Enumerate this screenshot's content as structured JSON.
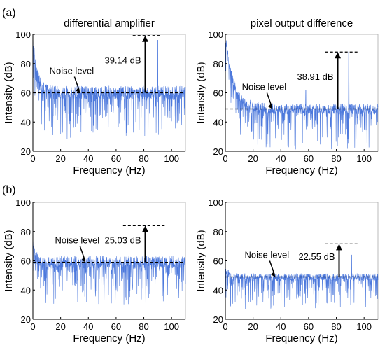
{
  "row_labels": [
    "(a)",
    "(b)"
  ],
  "colors": {
    "signal": "#2e62d6",
    "axis": "#000000",
    "noise_line": "#000000",
    "background": "#ffffff"
  },
  "chart_data": [
    {
      "type": "line",
      "title": "differential amplifier",
      "xlabel": "Frequency (Hz)",
      "ylabel": "Intensity (dB)",
      "xlim": [
        0,
        110
      ],
      "ylim": [
        20,
        100
      ],
      "xticks": [
        0,
        20,
        40,
        60,
        80,
        100
      ],
      "yticks": [
        20,
        40,
        60,
        80,
        100
      ],
      "noise_level_db": 60,
      "peak_freq_hz": 81,
      "peak_db": 99.14,
      "peak_line_extent_hz": [
        72,
        92
      ],
      "annotations": {
        "noise_label": "Noise level",
        "delta_label": "39.14 dB"
      },
      "noise_label_anchor": {
        "x": 34,
        "y": 60
      },
      "spectrum": {
        "floor_db": 60,
        "low_freq_start_db": 96,
        "low_freq_decay_hz": 3,
        "fluctuation_db": 8,
        "dip_db": 32,
        "extra_peaks": [
          {
            "x": 90,
            "y": 96
          }
        ]
      },
      "grid": false,
      "legend": "none"
    },
    {
      "type": "line",
      "title": "pixel output difference",
      "xlabel": "Frequency (Hz)",
      "ylabel": "Intensity (dB)",
      "xlim": [
        0,
        110
      ],
      "ylim": [
        20,
        100
      ],
      "xticks": [
        0,
        20,
        40,
        60,
        80,
        100
      ],
      "yticks": [
        20,
        40,
        60,
        80,
        100
      ],
      "noise_level_db": 49,
      "peak_freq_hz": 81,
      "peak_db": 87.91,
      "peak_line_extent_hz": [
        72,
        96
      ],
      "annotations": {
        "noise_label": "Noise level",
        "delta_label": "38.91 dB"
      },
      "noise_label_anchor": {
        "x": 34,
        "y": 49
      },
      "spectrum": {
        "floor_db": 49,
        "low_freq_start_db": 98,
        "low_freq_decay_hz": 6,
        "fluctuation_db": 6,
        "dip_db": 28,
        "extra_peaks": [
          {
            "x": 89,
            "y": 88
          },
          {
            "x": 58,
            "y": 62
          }
        ]
      },
      "grid": false,
      "legend": "none"
    },
    {
      "type": "line",
      "title": "",
      "xlabel": "Frequency (Hz)",
      "ylabel": "Intensity (dB)",
      "xlim": [
        0,
        110
      ],
      "ylim": [
        20,
        100
      ],
      "xticks": [
        0,
        20,
        40,
        60,
        80,
        100
      ],
      "yticks": [
        20,
        40,
        60,
        80,
        100
      ],
      "noise_level_db": 59,
      "peak_freq_hz": 81,
      "peak_db": 84.03,
      "peak_line_extent_hz": [
        65,
        95
      ],
      "annotations": {
        "noise_label": "Noise level",
        "delta_label": "25.03 dB"
      },
      "noise_label_anchor": {
        "x": 38,
        "y": 59
      },
      "spectrum": {
        "floor_db": 59,
        "low_freq_start_db": 70,
        "low_freq_decay_hz": 2,
        "fluctuation_db": 7,
        "dip_db": 30,
        "extra_peaks": []
      },
      "grid": false,
      "legend": "none"
    },
    {
      "type": "line",
      "title": "",
      "xlabel": "Frequency (Hz)",
      "ylabel": "Intensity (dB)",
      "xlim": [
        0,
        110
      ],
      "ylim": [
        20,
        100
      ],
      "xticks": [
        0,
        20,
        40,
        60,
        80,
        100
      ],
      "yticks": [
        20,
        40,
        60,
        80,
        100
      ],
      "noise_level_db": 49,
      "peak_freq_hz": 82,
      "peak_db": 71.55,
      "peak_line_extent_hz": [
        72,
        96
      ],
      "annotations": {
        "noise_label": "Noise level",
        "delta_label": "22.55 dB"
      },
      "noise_label_anchor": {
        "x": 36,
        "y": 49
      },
      "spectrum": {
        "floor_db": 49,
        "low_freq_start_db": 56,
        "low_freq_decay_hz": 2,
        "fluctuation_db": 4,
        "dip_db": 22,
        "extra_peaks": [
          {
            "x": 91,
            "y": 64
          }
        ]
      },
      "grid": false,
      "legend": "none"
    }
  ]
}
